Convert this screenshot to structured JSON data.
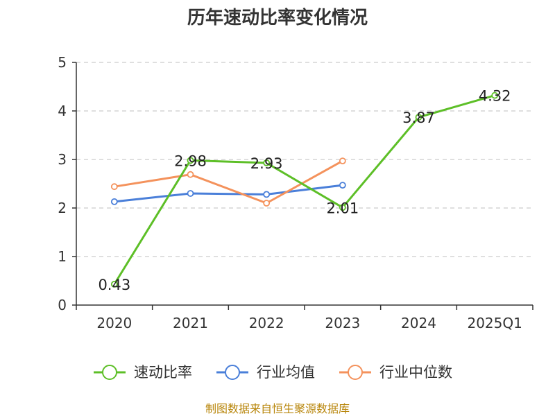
{
  "chart_data": {
    "type": "line",
    "title": "历年速动比率变化情况",
    "categories": [
      "2020",
      "2021",
      "2022",
      "2023",
      "2024",
      "2025Q1"
    ],
    "ylim": [
      0,
      5
    ],
    "yticks": [
      0,
      1,
      2,
      3,
      4,
      5
    ],
    "grid": true,
    "legend_position": "bottom",
    "series": [
      {
        "name": "速动比率",
        "color": "#5dbf27",
        "values": [
          0.43,
          2.98,
          2.93,
          2.01,
          3.87,
          4.32
        ],
        "labels": [
          "0.43",
          "2.98",
          "2.93",
          "2.01",
          "3.87",
          "4.32"
        ],
        "show_labels": true
      },
      {
        "name": "行业均值",
        "color": "#4a7fd9",
        "values": [
          2.13,
          2.3,
          2.28,
          2.47,
          null,
          null
        ],
        "show_labels": false
      },
      {
        "name": "行业中位数",
        "color": "#f4925c",
        "values": [
          2.44,
          2.69,
          2.1,
          2.97,
          null,
          null
        ],
        "show_labels": false
      }
    ]
  },
  "source": "制图数据来自恒生聚源数据库"
}
